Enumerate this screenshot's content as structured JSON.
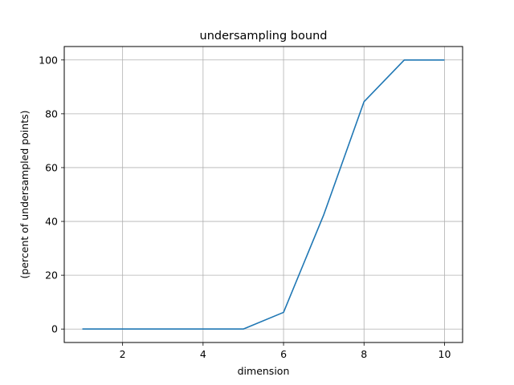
{
  "chart_data": {
    "type": "line",
    "title": "undersampling bound",
    "xlabel": "dimension",
    "ylabel": "(percent of undersampled points)",
    "xlim": [
      0.55,
      10.45
    ],
    "ylim": [
      -5,
      105
    ],
    "xticks": [
      2,
      4,
      6,
      8,
      10
    ],
    "yticks": [
      0,
      20,
      40,
      60,
      80,
      100
    ],
    "grid": true,
    "series": [
      {
        "color": "#1f77b4",
        "x": [
          1,
          2,
          3,
          4,
          5,
          6,
          7,
          8,
          9,
          10
        ],
        "y": [
          0,
          0,
          0,
          0,
          0,
          6.2,
          42.5,
          84.5,
          100,
          100
        ]
      }
    ]
  }
}
